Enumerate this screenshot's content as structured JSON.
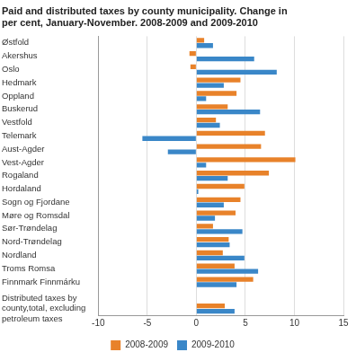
{
  "chart_data": {
    "type": "bar",
    "title": "Paid and distributed taxes by county municipality. Change in per cent, January-November. 2008-2009 and 2009-2010",
    "orientation": "horizontal",
    "categories": [
      "Østfold",
      "Akershus",
      "Oslo",
      "Hedmark",
      "Oppland",
      "Buskerud",
      "Vestfold",
      "Telemark",
      "Aust-Agder",
      "Vest-Agder",
      "Rogaland",
      "Hordaland",
      "Sogn og Fjordane",
      "Møre og Romsdal",
      "Sør-Trøndelag",
      "Nord-Trøndelag",
      "Nordland",
      "Troms Romsa",
      "Finnmark Finnmárku",
      null,
      "Distributed taxes by county,total, excluding petroleum taxes"
    ],
    "series": [
      {
        "name": "2008-2009",
        "color": "#e8822a",
        "values": [
          0.8,
          -0.7,
          -0.6,
          4.5,
          4.1,
          3.2,
          2.0,
          7.0,
          6.6,
          10.1,
          7.4,
          4.9,
          4.5,
          4.0,
          1.7,
          3.3,
          2.7,
          3.9,
          5.8,
          null,
          2.9
        ]
      },
      {
        "name": "2009-2010",
        "color": "#3a87c8",
        "values": [
          1.7,
          5.9,
          8.2,
          2.8,
          1.0,
          6.5,
          2.4,
          -5.5,
          -2.9,
          1.0,
          3.2,
          0.2,
          2.8,
          1.9,
          4.7,
          3.4,
          4.9,
          6.3,
          4.1,
          null,
          3.9
        ]
      }
    ],
    "xlim": [
      -10,
      15
    ],
    "xticks": [
      -10,
      -5,
      0,
      5,
      10,
      15
    ],
    "grid": true,
    "legend": "bottom"
  }
}
